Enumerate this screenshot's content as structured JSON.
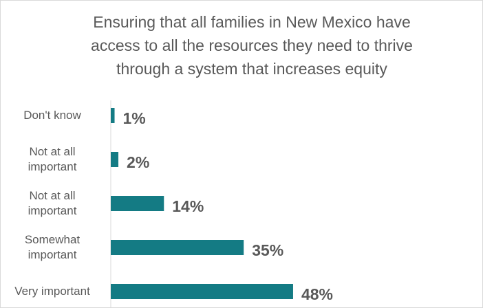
{
  "chart_data": {
    "type": "bar",
    "orientation": "horizontal",
    "title": "Ensuring that all families in New Mexico have access to all the resources they need to thrive through a system that increases equity",
    "categories": [
      "Don't know",
      "Not at all important",
      "Not at all important",
      "Somewhat important",
      "Very important"
    ],
    "values": [
      1,
      2,
      14,
      35,
      48
    ],
    "value_labels": [
      "1%",
      "2%",
      "14%",
      "35%",
      "48%"
    ],
    "color": "#147b84"
  }
}
